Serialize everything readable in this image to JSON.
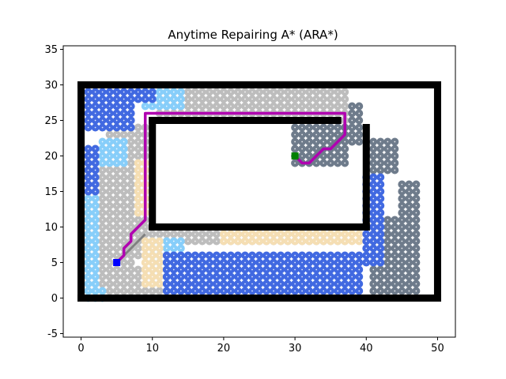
{
  "chart_data": {
    "type": "scatter",
    "title": "Anytime Repairing A* (ARA*)",
    "xlabel": "",
    "ylabel": "",
    "xlim": [
      -2.5,
      52.5
    ],
    "ylim": [
      -5.5,
      35.5
    ],
    "x_ticks": [
      0,
      10,
      20,
      30,
      40,
      50
    ],
    "y_ticks": [
      -5,
      0,
      5,
      10,
      15,
      20,
      25,
      30,
      35
    ],
    "grid": false,
    "legend": "none",
    "start": {
      "x": 5,
      "y": 5,
      "color": "#0000ff"
    },
    "goal": {
      "x": 30,
      "y": 20,
      "color": "#008000"
    },
    "obstacles": {
      "color": "#000000",
      "segments": [
        {
          "from": [
            0,
            0
          ],
          "to": [
            50,
            0
          ]
        },
        {
          "from": [
            0,
            30
          ],
          "to": [
            50,
            30
          ]
        },
        {
          "from": [
            0,
            0
          ],
          "to": [
            0,
            30
          ]
        },
        {
          "from": [
            50,
            0
          ],
          "to": [
            50,
            30
          ]
        },
        {
          "from": [
            10,
            10
          ],
          "to": [
            40,
            10
          ]
        },
        {
          "from": [
            10,
            10
          ],
          "to": [
            10,
            25
          ]
        },
        {
          "from": [
            10,
            25
          ],
          "to": [
            36,
            25
          ]
        },
        {
          "from": [
            40,
            10
          ],
          "to": [
            40,
            24
          ]
        }
      ]
    },
    "path": {
      "color": "#b000b0",
      "points": [
        [
          5,
          5
        ],
        [
          6,
          6
        ],
        [
          6,
          7
        ],
        [
          7,
          8
        ],
        [
          7,
          9
        ],
        [
          8,
          10
        ],
        [
          9,
          11
        ],
        [
          9,
          26
        ],
        [
          37,
          26
        ],
        [
          37,
          23
        ],
        [
          36,
          22
        ],
        [
          35,
          21
        ],
        [
          34,
          21
        ],
        [
          33,
          20
        ],
        [
          32,
          19
        ],
        [
          31,
          19
        ],
        [
          30,
          20
        ]
      ]
    },
    "prior_path": {
      "color": "#808080",
      "points": [
        [
          5,
          5
        ],
        [
          6,
          6
        ],
        [
          7,
          7
        ],
        [
          8,
          8
        ],
        [
          9,
          9
        ]
      ]
    },
    "visited_layers": [
      {
        "name": "light-gray",
        "color": "#bdbdbd",
        "cells": [
          {
            "x": [
              1,
              9
            ],
            "y": [
              6,
              21
            ]
          },
          {
            "x": [
              2,
              7
            ],
            "y": [
              1,
              5
            ]
          },
          {
            "x": [
              8,
              11
            ],
            "y": [
              1,
              4
            ]
          },
          {
            "x": [
              4,
              9
            ],
            "y": [
              22,
              24
            ]
          },
          {
            "x": [
              11,
              37
            ],
            "y": [
              26,
              29
            ]
          },
          {
            "x": [
              36,
              38
            ],
            "y": [
              22,
              25
            ]
          },
          {
            "x": [
              30,
              31
            ],
            "y": [
              19,
              21
            ]
          },
          {
            "x": [
              10,
              37
            ],
            "y": [
              8,
              9
            ]
          }
        ]
      },
      {
        "name": "dark-gray",
        "color": "#6e7b8b",
        "cells": [
          {
            "x": [
              41,
              47
            ],
            "y": [
              1,
              11
            ]
          },
          {
            "x": [
              41,
              44
            ],
            "y": [
              18,
              22
            ]
          },
          {
            "x": [
              45,
              47
            ],
            "y": [
              12,
              16
            ]
          },
          {
            "x": [
              38,
              39
            ],
            "y": [
              22,
              27
            ]
          },
          {
            "x": [
              30,
              37
            ],
            "y": [
              19,
              24
            ]
          },
          {
            "x": [
              1,
              2
            ],
            "y": [
              29,
              29
            ]
          }
        ]
      },
      {
        "name": "light-blue",
        "color": "#87cefa",
        "cells": [
          {
            "x": [
              1,
              2
            ],
            "y": [
              1,
              14
            ]
          },
          {
            "x": [
              3,
              6
            ],
            "y": [
              19,
              22
            ]
          },
          {
            "x": [
              9,
              14
            ],
            "y": [
              27,
              29
            ]
          },
          {
            "x": [
              10,
              14
            ],
            "y": [
              5,
              8
            ]
          },
          {
            "x": [
              17,
              37
            ],
            "y": [
              2,
              3
            ]
          },
          {
            "x": [
              1,
              3
            ],
            "y": [
              0,
              1
            ]
          }
        ]
      },
      {
        "name": "wheat",
        "color": "#f5deb3",
        "cells": [
          {
            "x": [
              8,
              9
            ],
            "y": [
              12,
              19
            ]
          },
          {
            "x": [
              9,
              11
            ],
            "y": [
              2,
              8
            ]
          },
          {
            "x": [
              20,
              39
            ],
            "y": [
              8,
              9
            ]
          }
        ]
      },
      {
        "name": "royal-blue",
        "color": "#4169e1",
        "cells": [
          {
            "x": [
              1,
              7
            ],
            "y": [
              24,
              29
            ]
          },
          {
            "x": [
              1,
              2
            ],
            "y": [
              15,
              21
            ]
          },
          {
            "x": [
              12,
              39
            ],
            "y": [
              1,
              6
            ]
          },
          {
            "x": [
              40,
              42
            ],
            "y": [
              5,
              17
            ]
          },
          {
            "x": [
              13,
              17
            ],
            "y": [
              1,
              2
            ]
          },
          {
            "x": [
              8,
              10
            ],
            "y": [
              28,
              29
            ]
          }
        ]
      }
    ]
  }
}
